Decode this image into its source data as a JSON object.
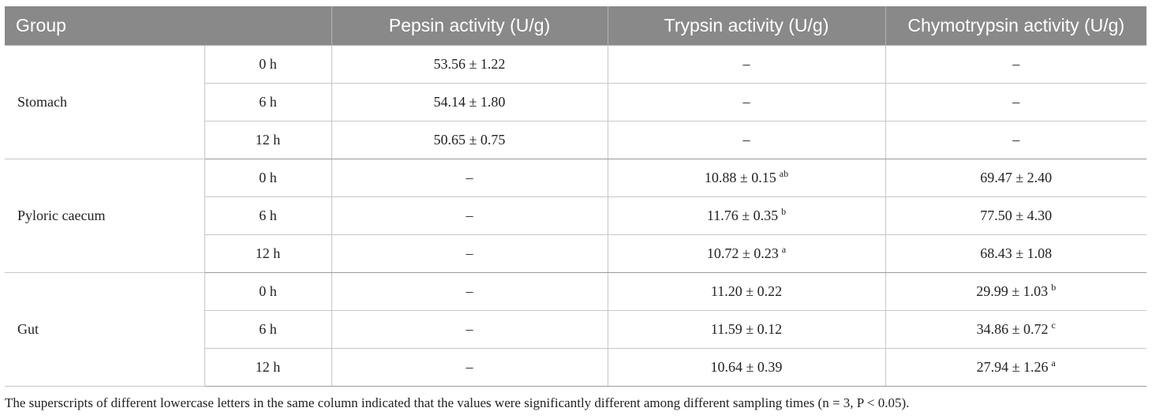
{
  "table": {
    "headers": [
      "Group",
      "",
      "Pepsin activity (U/g)",
      "Trypsin activity (U/g)",
      "Chymotrypsin activity (U/g)"
    ],
    "groups": [
      {
        "name": "Stomach",
        "rows": [
          {
            "time": "0 h",
            "pepsin": "53.56 ± 1.22",
            "pepsin_sup": "",
            "trypsin": "–",
            "trypsin_sup": "",
            "chymo": "–",
            "chymo_sup": ""
          },
          {
            "time": "6 h",
            "pepsin": "54.14 ± 1.80",
            "pepsin_sup": "",
            "trypsin": "–",
            "trypsin_sup": "",
            "chymo": "–",
            "chymo_sup": ""
          },
          {
            "time": "12 h",
            "pepsin": "50.65 ± 0.75",
            "pepsin_sup": "",
            "trypsin": "–",
            "trypsin_sup": "",
            "chymo": "–",
            "chymo_sup": ""
          }
        ]
      },
      {
        "name": "Pyloric caecum",
        "rows": [
          {
            "time": "0 h",
            "pepsin": "–",
            "pepsin_sup": "",
            "trypsin": "10.88 ± 0.15",
            "trypsin_sup": "ab",
            "chymo": "69.47 ± 2.40",
            "chymo_sup": ""
          },
          {
            "time": "6 h",
            "pepsin": "–",
            "pepsin_sup": "",
            "trypsin": "11.76 ± 0.35",
            "trypsin_sup": "b",
            "chymo": "77.50 ± 4.30",
            "chymo_sup": ""
          },
          {
            "time": "12 h",
            "pepsin": "–",
            "pepsin_sup": "",
            "trypsin": "10.72 ± 0.23",
            "trypsin_sup": "a",
            "chymo": "68.43 ± 1.08",
            "chymo_sup": ""
          }
        ]
      },
      {
        "name": "Gut",
        "rows": [
          {
            "time": "0 h",
            "pepsin": "–",
            "pepsin_sup": "",
            "trypsin": "11.20 ± 0.22",
            "trypsin_sup": "",
            "chymo": "29.99 ± 1.03",
            "chymo_sup": "b"
          },
          {
            "time": "6 h",
            "pepsin": "–",
            "pepsin_sup": "",
            "trypsin": "11.59 ± 0.12",
            "trypsin_sup": "",
            "chymo": "34.86 ± 0.72",
            "chymo_sup": "c"
          },
          {
            "time": "12 h",
            "pepsin": "–",
            "pepsin_sup": "",
            "trypsin": "10.64 ± 0.39",
            "trypsin_sup": "",
            "chymo": "27.94 ± 1.26",
            "chymo_sup": "a"
          }
        ]
      }
    ]
  },
  "footnote": "The superscripts of different lowercase letters in the same column indicated that the values were significantly different among different sampling times (n = 3, P < 0.05).",
  "colors": {
    "header_bg": "#898989",
    "header_text": "#ffffff",
    "grid": "#c7c7c7"
  }
}
